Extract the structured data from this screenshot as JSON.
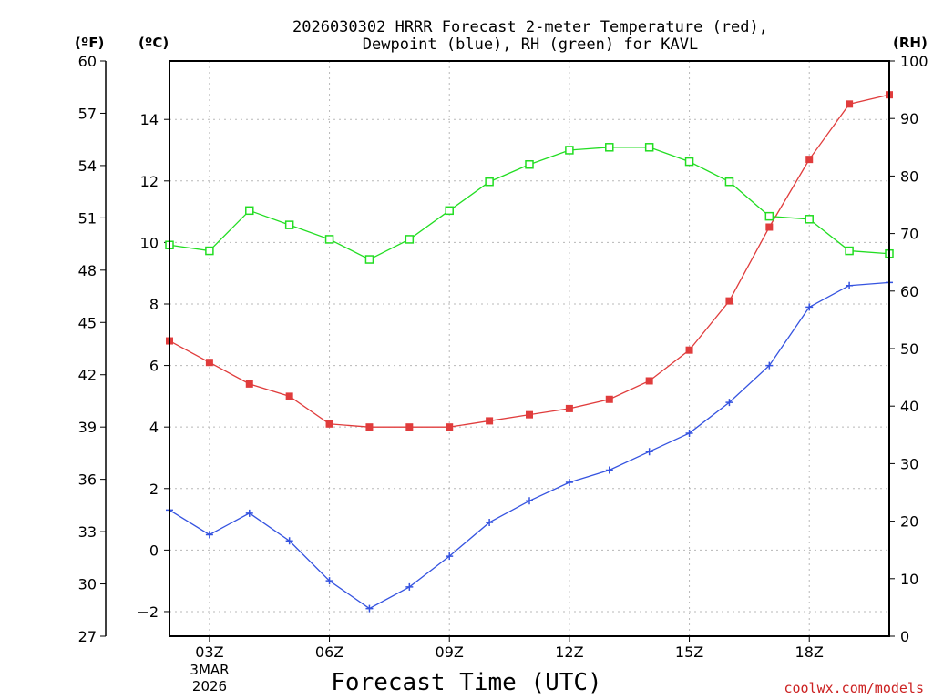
{
  "chart_data": {
    "type": "line",
    "title_line1": "2026030302 HRRR Forecast 2-meter Temperature (red),",
    "title_line2": "Dewpoint (blue), RH (green) for KAVL",
    "xlabel": "Forecast Time (UTC)",
    "credit": "coolwx.com/models",
    "date_labels": [
      "3MAR",
      "2026"
    ],
    "units": {
      "fahrenheit": "(ºF)",
      "celsius": "(ºC)",
      "rh": "(RH)"
    },
    "x_hours": [
      2,
      3,
      4,
      5,
      6,
      7,
      8,
      9,
      10,
      11,
      12,
      13,
      14,
      15,
      16,
      17,
      18,
      19,
      20
    ],
    "xlim": [
      2,
      20
    ],
    "x_ticks": [
      {
        "hour": 3,
        "label": "03Z"
      },
      {
        "hour": 6,
        "label": "06Z"
      },
      {
        "hour": 9,
        "label": "09Z"
      },
      {
        "hour": 12,
        "label": "12Z"
      },
      {
        "hour": 15,
        "label": "15Z"
      },
      {
        "hour": 18,
        "label": "18Z"
      }
    ],
    "celsius_axis": {
      "range": [
        -2.8,
        15.9
      ],
      "ticks": [
        "-2",
        "0",
        "2",
        "4",
        "6",
        "8",
        "10",
        "12",
        "14"
      ]
    },
    "fahrenheit_axis": {
      "range": [
        27,
        60
      ],
      "ticks": [
        "27",
        "30",
        "33",
        "36",
        "39",
        "42",
        "45",
        "48",
        "51",
        "54",
        "57",
        "60"
      ]
    },
    "rh_axis": {
      "range": [
        0,
        100
      ],
      "ticks": [
        "0",
        "10",
        "20",
        "30",
        "40",
        "50",
        "60",
        "70",
        "80",
        "90",
        "100"
      ]
    },
    "series": [
      {
        "name": "2-meter Temperature",
        "units": "C",
        "color": "#e03c3c",
        "marker": "filled-square",
        "values": [
          6.8,
          6.1,
          5.4,
          5.0,
          4.1,
          4.0,
          4.0,
          4.0,
          4.2,
          4.4,
          4.6,
          4.9,
          5.5,
          6.5,
          8.1,
          10.5,
          12.7,
          14.5,
          14.8
        ]
      },
      {
        "name": "Dewpoint",
        "units": "C",
        "color": "#3553e0",
        "marker": "plus",
        "values": [
          1.3,
          0.5,
          1.2,
          0.3,
          -1.0,
          -1.9,
          -1.2,
          -0.2,
          0.9,
          1.6,
          2.2,
          2.6,
          3.2,
          3.8,
          4.8,
          6.0,
          7.9,
          8.6,
          8.7
        ]
      },
      {
        "name": "Relative Humidity",
        "units": "%",
        "color": "#22dd22",
        "marker": "open-square",
        "values": [
          68,
          67,
          74,
          71.5,
          69,
          65.5,
          69,
          74,
          79,
          82,
          84.5,
          85,
          85,
          82.5,
          79,
          73,
          72.5,
          67,
          66.5
        ]
      }
    ]
  }
}
